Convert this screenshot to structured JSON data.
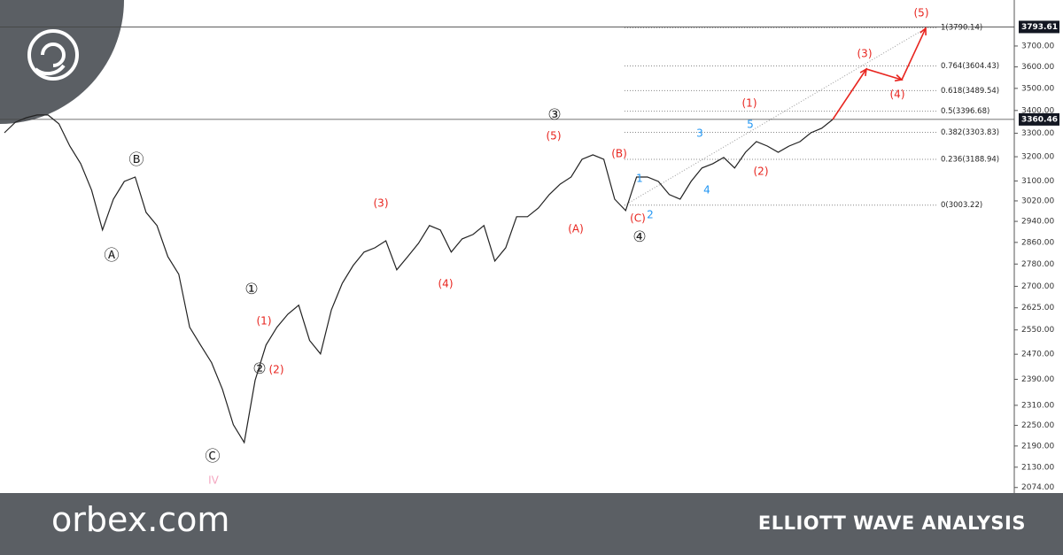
{
  "chart_data": {
    "type": "line",
    "log_scale": true,
    "color": "#222222",
    "ylim": [
      2059,
      3930
    ],
    "yticks": [
      {
        "value": 2074,
        "label": "2074.00"
      },
      {
        "value": 2130,
        "label": "2130.00"
      },
      {
        "value": 2190,
        "label": "2190.00"
      },
      {
        "value": 2250,
        "label": "2250.00"
      },
      {
        "value": 2310,
        "label": "2310.00"
      },
      {
        "value": 2390,
        "label": "2390.00"
      },
      {
        "value": 2470,
        "label": "2470.00"
      },
      {
        "value": 2550,
        "label": "2550.00"
      },
      {
        "value": 2625,
        "label": "2625.00"
      },
      {
        "value": 2700,
        "label": "2700.00"
      },
      {
        "value": 2780,
        "label": "2780.00"
      },
      {
        "value": 2860,
        "label": "2860.00"
      },
      {
        "value": 2940,
        "label": "2940.00"
      },
      {
        "value": 3020,
        "label": "3020.00"
      },
      {
        "value": 3100,
        "label": "3100.00"
      },
      {
        "value": 3200,
        "label": "3200.00"
      },
      {
        "value": 3300,
        "label": "3300.00"
      },
      {
        "value": 3400,
        "label": "3400.00"
      },
      {
        "value": 3500,
        "label": "3500.00"
      },
      {
        "value": 3600,
        "label": "3600.00"
      },
      {
        "value": 3700,
        "label": "3700.00"
      }
    ],
    "values": [
      3302,
      3348,
      3368,
      3380,
      3380,
      3341,
      3245,
      3171,
      3063,
      2907,
      3027,
      3098,
      3116,
      2975,
      2924,
      2807,
      2743,
      2559,
      2500,
      2443,
      2359,
      2252,
      2200,
      2387,
      2500,
      2559,
      2603,
      2634,
      2515,
      2471,
      2618,
      2711,
      2775,
      2824,
      2840,
      2866,
      2759,
      2807,
      2857,
      2924,
      2907,
      2824,
      2873,
      2890,
      2924,
      2791,
      2840,
      2958,
      2958,
      2992,
      3045,
      3087,
      3116,
      3189,
      3208,
      3189,
      3027,
      2982,
      3116,
      3116,
      3098,
      3045,
      3027,
      3098,
      3153,
      3171,
      3197,
      3153,
      3219,
      3264,
      3245,
      3219,
      3245,
      3264,
      3302,
      3322,
      3360
    ],
    "projection": {
      "color": "#e8251f",
      "values": [
        3360,
        3590,
        3540,
        3787
      ]
    },
    "price_lines": [
      3793.61,
      3360.46
    ],
    "fib_levels": [
      {
        "label": "1(3790.14)",
        "value": 3790.14
      },
      {
        "label": "0.764(3604.43)",
        "value": 3604.43
      },
      {
        "label": "0.618(3489.54)",
        "value": 3489.54
      },
      {
        "label": "0.5(3396.68)",
        "value": 3396.68
      },
      {
        "label": "0.382(3303.83)",
        "value": 3303.83
      },
      {
        "label": "0.236(3188.94)",
        "value": 3188.94
      },
      {
        "label": "0(3003.22)",
        "value": 3003.22
      }
    ],
    "annotations": [
      {
        "text": "Ⓑ",
        "color": "#222222"
      },
      {
        "text": "Ⓐ",
        "color": "#222222"
      },
      {
        "text": "Ⓒ",
        "color": "#222222"
      },
      {
        "text": "①",
        "color": "#222222"
      },
      {
        "text": "②",
        "color": "#222222"
      },
      {
        "text": "③",
        "color": "#222222"
      },
      {
        "text": "④",
        "color": "#222222"
      },
      {
        "text": "(1)",
        "color": "#e8251f"
      },
      {
        "text": "(2)",
        "color": "#e8251f"
      },
      {
        "text": "(3)",
        "color": "#e8251f"
      },
      {
        "text": "(4)",
        "color": "#e8251f"
      },
      {
        "text": "(5)",
        "color": "#e8251f"
      },
      {
        "text": "(A)",
        "color": "#e8251f"
      },
      {
        "text": "(B)",
        "color": "#e8251f"
      },
      {
        "text": "(C)",
        "color": "#e8251f"
      },
      {
        "text": "(1)",
        "color": "#e8251f"
      },
      {
        "text": "(2)",
        "color": "#e8251f"
      },
      {
        "text": "(3)",
        "color": "#e8251f"
      },
      {
        "text": "(4)",
        "color": "#e8251f"
      },
      {
        "text": "(5)",
        "color": "#e8251f"
      },
      {
        "text": "1",
        "color": "#2196f3"
      },
      {
        "text": "2",
        "color": "#2196f3"
      },
      {
        "text": "3",
        "color": "#2196f3"
      },
      {
        "text": "4",
        "color": "#2196f3"
      },
      {
        "text": "5",
        "color": "#2196f3"
      },
      {
        "text": "IV",
        "color": "#f4a6c0"
      }
    ]
  },
  "banner": {
    "brand": "orbex.com",
    "title": "ELLIOTT WAVE ANALYSIS"
  }
}
